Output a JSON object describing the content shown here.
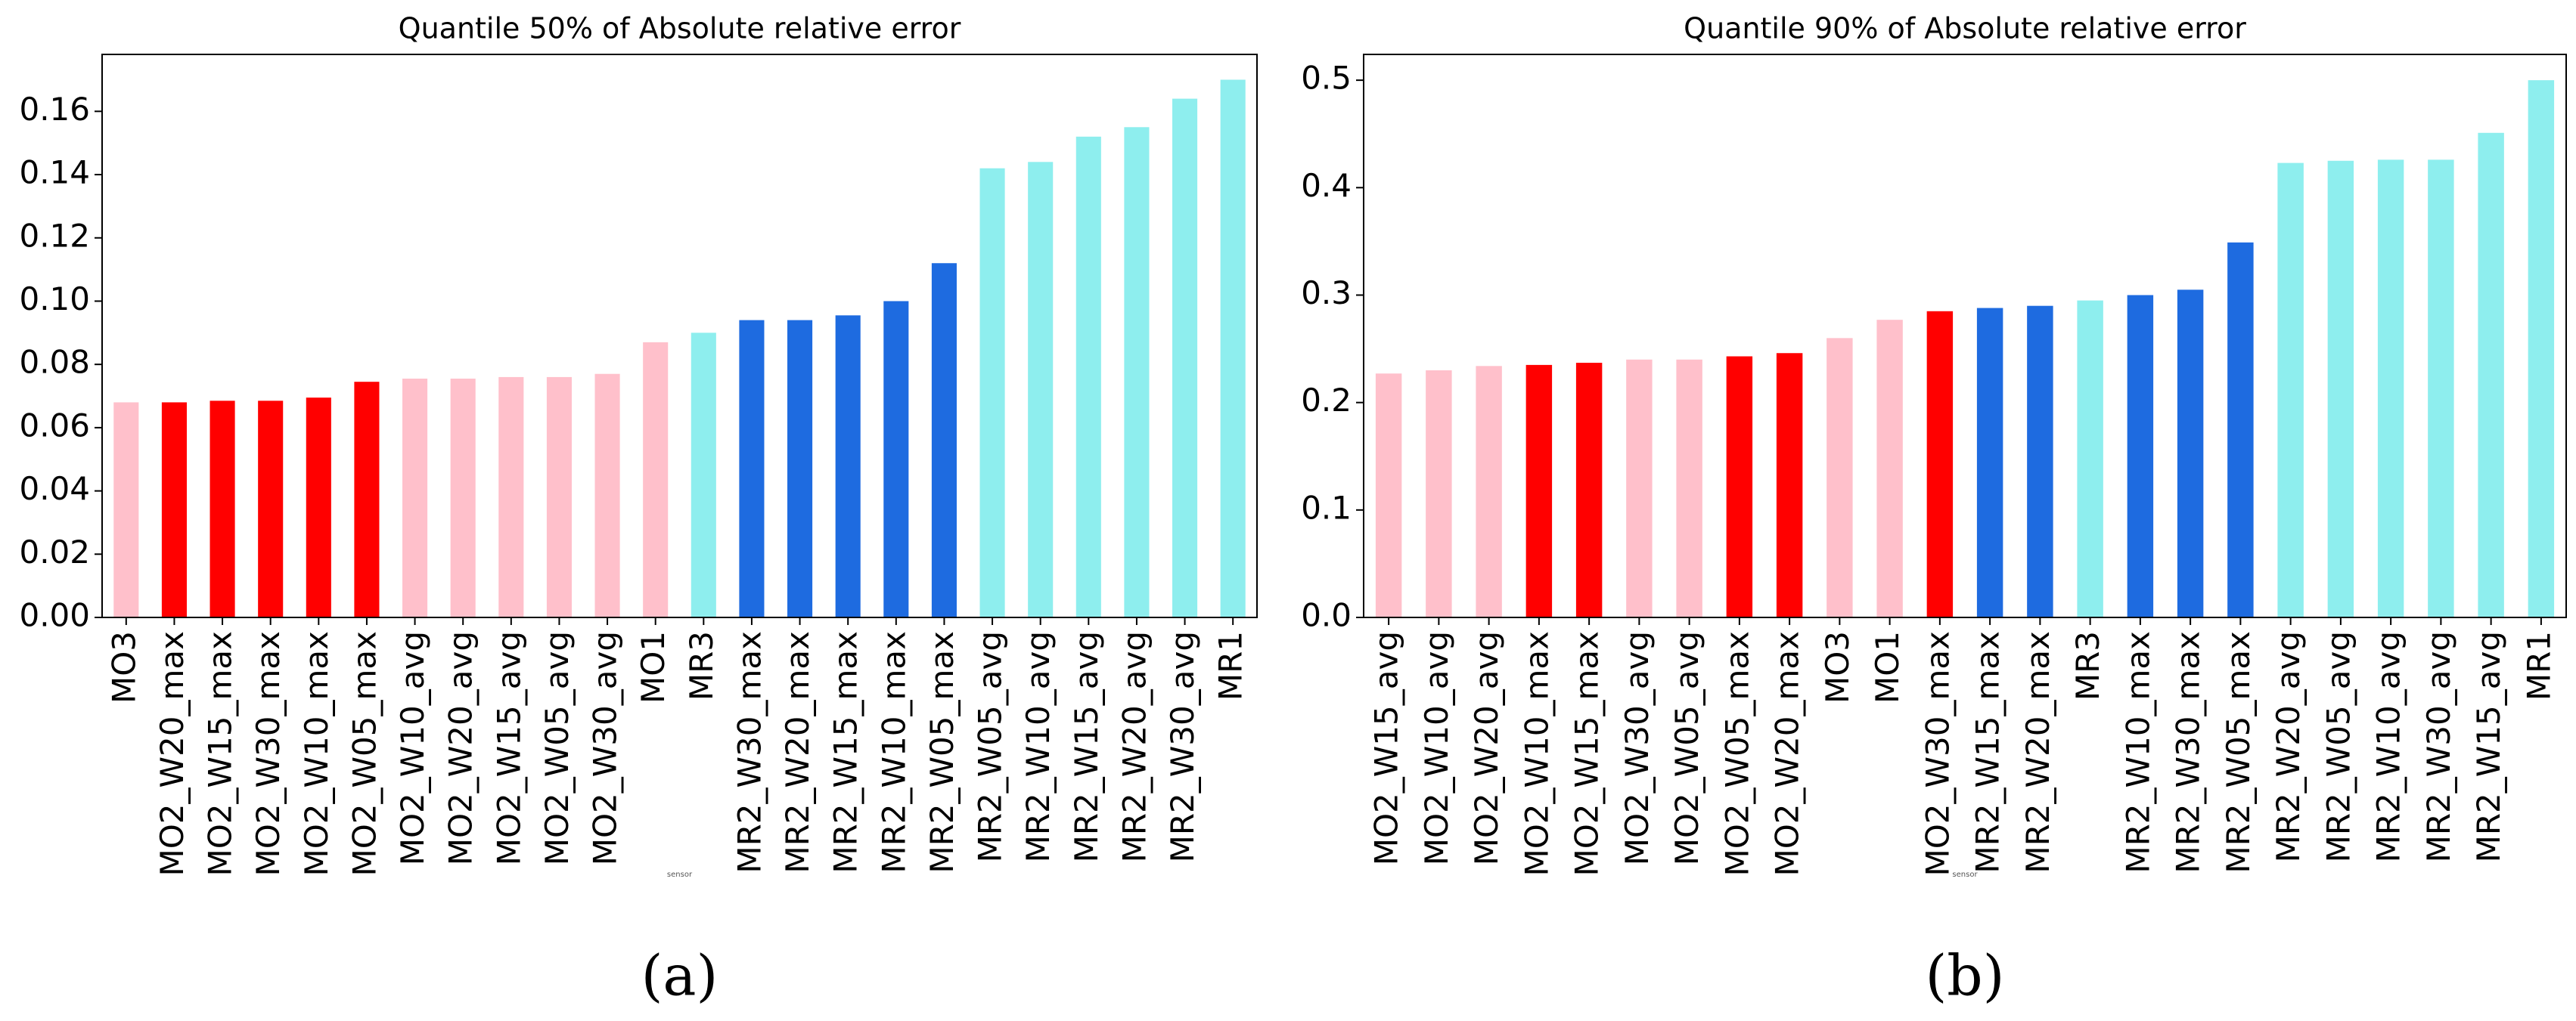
{
  "chart_data": [
    {
      "type": "bar",
      "title": "Quantile 50% of Absolute relative error",
      "xlabel": "sensor",
      "caption": "(a)",
      "categories": [
        "MO3",
        "MO2_W20_max",
        "MO2_W15_max",
        "MO2_W30_max",
        "MO2_W10_max",
        "MO2_W05_max",
        "MO2_W10_avg",
        "MO2_W20_avg",
        "MO2_W15_avg",
        "MO2_W05_avg",
        "MO2_W30_avg",
        "MO1",
        "MR3",
        "MR2_W30_max",
        "MR2_W20_max",
        "MR2_W15_max",
        "MR2_W10_max",
        "MR2_W05_max",
        "MR2_W05_avg",
        "MR2_W10_avg",
        "MR2_W15_avg",
        "MR2_W20_avg",
        "MR2_W30_avg",
        "MR1"
      ],
      "values": [
        0.068,
        0.068,
        0.0685,
        0.0685,
        0.0695,
        0.0745,
        0.0755,
        0.0755,
        0.076,
        0.076,
        0.077,
        0.087,
        0.09,
        0.094,
        0.094,
        0.0955,
        0.1,
        0.112,
        0.142,
        0.144,
        0.152,
        0.155,
        0.164,
        0.17
      ],
      "colors": [
        "#ffc0cb",
        "#ff0000",
        "#ff0000",
        "#ff0000",
        "#ff0000",
        "#ff0000",
        "#ffc0cb",
        "#ffc0cb",
        "#ffc0cb",
        "#ffc0cb",
        "#ffc0cb",
        "#ffc0cb",
        "#8eeeee",
        "#1e6be0",
        "#1e6be0",
        "#1e6be0",
        "#1e6be0",
        "#1e6be0",
        "#8eeeee",
        "#8eeeee",
        "#8eeeee",
        "#8eeeee",
        "#8eeeee",
        "#8eeeee"
      ],
      "ylim": [
        0,
        0.178
      ],
      "yticks": [
        {
          "value": 0,
          "label": "0.00"
        },
        {
          "value": 0.02,
          "label": "0.02"
        },
        {
          "value": 0.04,
          "label": "0.04"
        },
        {
          "value": 0.06,
          "label": "0.06"
        },
        {
          "value": 0.08,
          "label": "0.08"
        },
        {
          "value": 0.1,
          "label": "0.10"
        },
        {
          "value": 0.12,
          "label": "0.12"
        },
        {
          "value": 0.14,
          "label": "0.14"
        },
        {
          "value": 0.16,
          "label": "0.16"
        }
      ]
    },
    {
      "type": "bar",
      "title": "Quantile 90% of Absolute relative error",
      "xlabel": "sensor",
      "caption": "(b)",
      "categories": [
        "MO2_W15_avg",
        "MO2_W10_avg",
        "MO2_W20_avg",
        "MO2_W10_max",
        "MO2_W15_max",
        "MO2_W30_avg",
        "MO2_W05_avg",
        "MO2_W05_max",
        "MO2_W20_max",
        "MO3",
        "MO1",
        "MO2_W30_max",
        "MR2_W15_max",
        "MR2_W20_max",
        "MR3",
        "MR2_W10_max",
        "MR2_W30_max",
        "MR2_W05_max",
        "MR2_W20_avg",
        "MR2_W05_avg",
        "MR2_W10_avg",
        "MR2_W30_avg",
        "MR2_W15_avg",
        "MR1"
      ],
      "values": [
        0.227,
        0.23,
        0.234,
        0.235,
        0.237,
        0.24,
        0.24,
        0.243,
        0.246,
        0.26,
        0.277,
        0.285,
        0.288,
        0.29,
        0.295,
        0.3,
        0.305,
        0.349,
        0.423,
        0.425,
        0.426,
        0.426,
        0.451,
        0.5
      ],
      "colors": [
        "#ffc0cb",
        "#ffc0cb",
        "#ffc0cb",
        "#ff0000",
        "#ff0000",
        "#ffc0cb",
        "#ffc0cb",
        "#ff0000",
        "#ff0000",
        "#ffc0cb",
        "#ffc0cb",
        "#ff0000",
        "#1e6be0",
        "#1e6be0",
        "#8eeeee",
        "#1e6be0",
        "#1e6be0",
        "#1e6be0",
        "#8eeeee",
        "#8eeeee",
        "#8eeeee",
        "#8eeeee",
        "#8eeeee",
        "#8eeeee"
      ],
      "ylim": [
        0,
        0.524
      ],
      "yticks": [
        {
          "value": 0,
          "label": "0.0"
        },
        0.1,
        0.2,
        0.3,
        0.4,
        0.5
      ]
    }
  ]
}
